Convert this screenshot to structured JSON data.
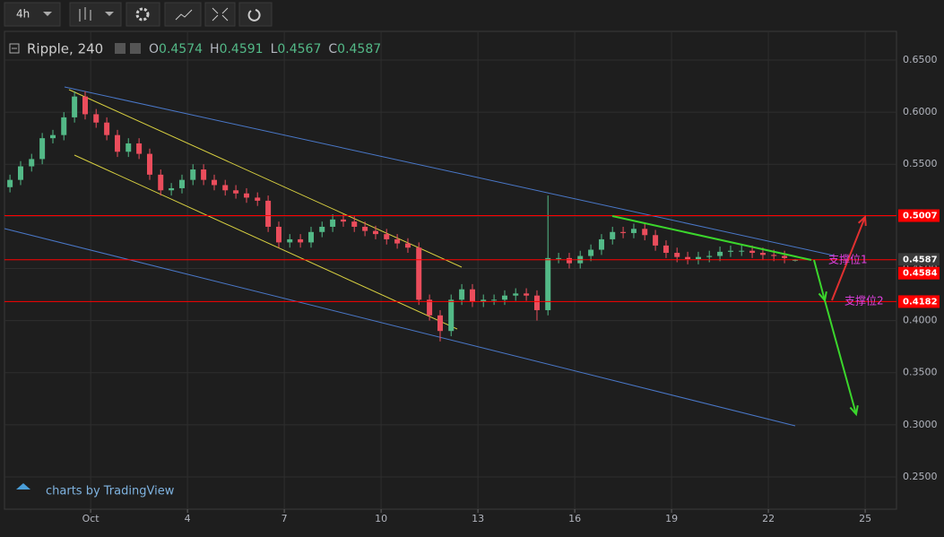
{
  "toolbar": {
    "interval": "4h"
  },
  "chart_data": {
    "type": "candlestick",
    "title": "Ripple, 240",
    "ohlc_labels": [
      "O",
      "H",
      "L",
      "C"
    ],
    "x": [
      -1.5,
      -1.17,
      -0.83,
      -0.5,
      -0.17,
      0.17,
      0.5,
      0.83,
      1.17,
      1.5,
      1.83,
      2.17,
      2.5,
      2.83,
      3.17,
      3.5,
      3.83,
      4.17,
      4.5,
      4.83,
      5.17,
      5.5,
      5.83,
      6.17,
      6.5,
      6.83,
      7.17,
      7.5,
      7.83,
      8.17,
      8.5,
      8.83,
      9.17,
      9.5,
      9.83,
      10.17,
      10.5,
      10.83,
      11.17,
      11.5,
      11.83,
      12.17,
      12.5,
      12.83,
      13.17,
      13.5,
      13.83,
      14.17,
      14.5,
      14.83,
      15.17,
      15.5,
      15.83,
      16.17,
      16.5,
      16.83,
      17.17,
      17.5,
      17.83,
      18.17,
      18.5,
      18.83,
      19.17,
      19.5,
      19.83,
      20.17,
      20.5,
      20.83,
      21.17,
      21.5,
      21.83,
      22.17,
      22.5,
      22.83
    ],
    "open": [
      0.528,
      0.535,
      0.548,
      0.555,
      0.575,
      0.578,
      0.595,
      0.615,
      0.598,
      0.59,
      0.578,
      0.562,
      0.57,
      0.56,
      0.54,
      0.525,
      0.527,
      0.535,
      0.545,
      0.535,
      0.53,
      0.525,
      0.522,
      0.518,
      0.515,
      0.49,
      0.475,
      0.478,
      0.475,
      0.485,
      0.49,
      0.497,
      0.495,
      0.49,
      0.486,
      0.483,
      0.478,
      0.474,
      0.47,
      0.42,
      0.405,
      0.39,
      0.42,
      0.43,
      0.418,
      0.42,
      0.42,
      0.424,
      0.426,
      0.424,
      0.41,
      0.46,
      0.46,
      0.455,
      0.462,
      0.468,
      0.478,
      0.485,
      0.484,
      0.488,
      0.482,
      0.472,
      0.465,
      0.461,
      0.459,
      0.461,
      0.462,
      0.466,
      0.467,
      0.467,
      0.465,
      0.463,
      0.462,
      0.4574
    ],
    "high": [
      0.54,
      0.553,
      0.56,
      0.58,
      0.583,
      0.6,
      0.62,
      0.62,
      0.603,
      0.595,
      0.583,
      0.575,
      0.575,
      0.565,
      0.545,
      0.532,
      0.54,
      0.55,
      0.55,
      0.54,
      0.535,
      0.53,
      0.527,
      0.523,
      0.52,
      0.495,
      0.483,
      0.483,
      0.49,
      0.495,
      0.502,
      0.502,
      0.5,
      0.495,
      0.491,
      0.488,
      0.483,
      0.479,
      0.475,
      0.425,
      0.41,
      0.425,
      0.435,
      0.435,
      0.425,
      0.425,
      0.429,
      0.431,
      0.431,
      0.429,
      0.52,
      0.465,
      0.465,
      0.467,
      0.473,
      0.483,
      0.49,
      0.49,
      0.493,
      0.493,
      0.487,
      0.477,
      0.47,
      0.466,
      0.466,
      0.467,
      0.471,
      0.472,
      0.472,
      0.472,
      0.47,
      0.468,
      0.467,
      0.4591
    ],
    "low": [
      0.523,
      0.53,
      0.543,
      0.55,
      0.57,
      0.573,
      0.59,
      0.593,
      0.585,
      0.573,
      0.557,
      0.557,
      0.555,
      0.535,
      0.52,
      0.52,
      0.522,
      0.53,
      0.53,
      0.525,
      0.52,
      0.517,
      0.513,
      0.51,
      0.485,
      0.47,
      0.47,
      0.47,
      0.47,
      0.48,
      0.485,
      0.49,
      0.485,
      0.481,
      0.478,
      0.473,
      0.469,
      0.465,
      0.415,
      0.4,
      0.38,
      0.385,
      0.415,
      0.413,
      0.413,
      0.415,
      0.415,
      0.419,
      0.419,
      0.4,
      0.405,
      0.455,
      0.45,
      0.45,
      0.457,
      0.463,
      0.473,
      0.479,
      0.479,
      0.477,
      0.467,
      0.46,
      0.456,
      0.454,
      0.454,
      0.456,
      0.457,
      0.461,
      0.462,
      0.46,
      0.458,
      0.457,
      0.455,
      0.4567
    ],
    "close": [
      0.535,
      0.548,
      0.555,
      0.575,
      0.578,
      0.595,
      0.615,
      0.598,
      0.59,
      0.578,
      0.562,
      0.57,
      0.56,
      0.54,
      0.525,
      0.527,
      0.535,
      0.545,
      0.535,
      0.53,
      0.525,
      0.522,
      0.518,
      0.515,
      0.49,
      0.475,
      0.478,
      0.475,
      0.485,
      0.49,
      0.497,
      0.495,
      0.49,
      0.486,
      0.483,
      0.478,
      0.474,
      0.47,
      0.42,
      0.405,
      0.39,
      0.42,
      0.43,
      0.418,
      0.42,
      0.42,
      0.424,
      0.426,
      0.424,
      0.41,
      0.46,
      0.46,
      0.455,
      0.462,
      0.468,
      0.478,
      0.485,
      0.484,
      0.488,
      0.482,
      0.472,
      0.465,
      0.461,
      0.459,
      0.461,
      0.462,
      0.466,
      0.467,
      0.467,
      0.465,
      0.463,
      0.462,
      0.46,
      0.4587
    ],
    "up_color": "#53b987",
    "down_color": "#eb4d5c",
    "xlim": [
      -1.67,
      25.97
    ],
    "xticks": [
      {
        "value": 1,
        "label": "Oct"
      },
      4,
      7,
      10,
      13,
      16,
      19,
      22,
      25
    ],
    "ylim": [
      0.219,
      0.6775
    ],
    "yticks": [
      {
        "value": 0.25,
        "label": "0.2500"
      },
      {
        "value": 0.3,
        "label": "0.3000"
      },
      {
        "value": 0.35,
        "label": "0.3500"
      },
      {
        "value": 0.4,
        "label": "0.4000"
      },
      {
        "value": 0.45,
        "label": "0.4500"
      },
      {
        "value": 0.5,
        "label": "0.5000"
      },
      {
        "value": 0.55,
        "label": "0.5500"
      },
      {
        "value": 0.6,
        "label": "0.6000"
      },
      {
        "value": 0.65,
        "label": "0.6500"
      }
    ],
    "levels": [
      0.5007,
      0.4584,
      0.4182
    ],
    "level_color": "#ff0000",
    "annotations": [
      "支撑位1",
      "支撑位2"
    ],
    "grid": true
  },
  "branding": "charts by TradingView"
}
